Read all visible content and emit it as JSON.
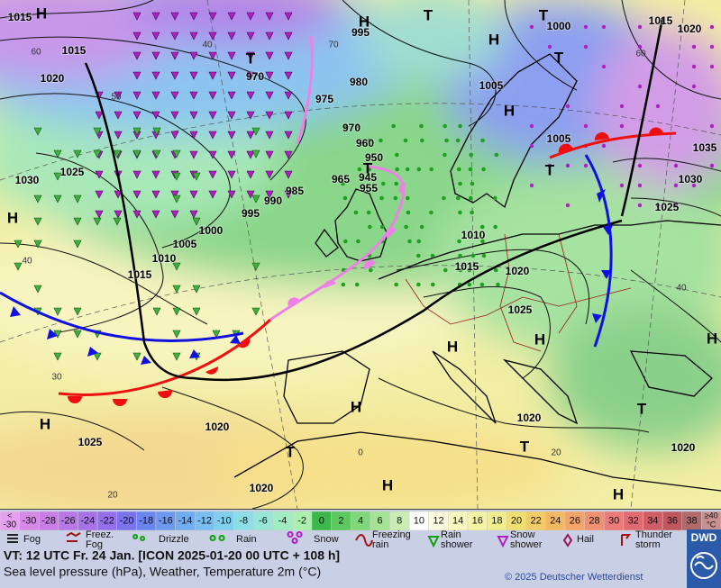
{
  "map": {
    "pressure_labels": [
      "1015",
      "H",
      "1015",
      "1020",
      "1025",
      "1030",
      "H",
      "1015",
      "1010",
      "1005",
      "1000",
      "995",
      "990",
      "985",
      "965",
      "955",
      "945",
      "T",
      "950",
      "960",
      "970",
      "975",
      "980",
      "970",
      "T",
      "995",
      "H",
      "T",
      "H",
      "1005",
      "H",
      "1000",
      "T",
      "T",
      "1015",
      "1020",
      "1005",
      "T",
      "1035",
      "1030",
      "1025",
      "1010",
      "1015",
      "1020",
      "1025",
      "H",
      "H",
      "H",
      "H",
      "T",
      "1020",
      "T",
      "1020",
      "H",
      "1025",
      "1020",
      "T",
      "1020",
      "H",
      "H"
    ],
    "isotherm_labels": [
      "60",
      "50",
      "40",
      "30",
      "20",
      "60",
      "40",
      "20",
      "0",
      "70",
      "40"
    ]
  },
  "legend": {
    "temperature_scale": {
      "below": [
        "<",
        "-30"
      ],
      "steps": [
        -30,
        -28,
        -26,
        -24,
        -22,
        -20,
        -18,
        -16,
        -14,
        -12,
        -10,
        -8,
        -6,
        -4,
        -2,
        0,
        2,
        4,
        6,
        8,
        10,
        12,
        14,
        16,
        18,
        20,
        22,
        24,
        26,
        28,
        30,
        32,
        34,
        36,
        38
      ],
      "above": [
        "≥40",
        "°C"
      ],
      "colors": [
        "#e6a0f0",
        "#d58ae8",
        "#c87ee6",
        "#b877e6",
        "#a672e8",
        "#956fea",
        "#7a74ec",
        "#6a86ee",
        "#6c98f0",
        "#70acf2",
        "#78bef2",
        "#80cfee",
        "#8cdde6",
        "#98e6d8",
        "#a2ecc4",
        "#acf0b0",
        "#3cb84a",
        "#5cc860",
        "#80d67a",
        "#a4e296",
        "#c8eeb4",
        "#ffffff",
        "#fafae0",
        "#f8f8c0",
        "#f4f4a4",
        "#f2ee8c",
        "#f0e070",
        "#f2cc68",
        "#f4b860",
        "#f4a468",
        "#f09070",
        "#ec7a78",
        "#e06a72",
        "#d05c66",
        "#c0565e",
        "#b06a6a",
        "#c89090"
      ]
    },
    "weather": [
      [
        "Fog"
      ],
      [
        "Freez.",
        "Fog"
      ],
      [
        "Drizzle"
      ],
      [
        "Rain"
      ],
      [
        "Snow"
      ],
      [
        "Freezing",
        "rain"
      ],
      [
        "Rain",
        "shower"
      ],
      [
        "Snow",
        "shower"
      ],
      [
        "Hail"
      ],
      [
        "Thunder",
        "storm"
      ]
    ]
  },
  "footer": {
    "valid_time": "VT: 12 UTC Fr.  24 Jan. [ICON 2025-01-20  00 UTC + 108 h]",
    "subtitle": "Sea level pressure (hPa), Weather, Temperature 2m (°C)",
    "copyright": "© 2025 Deutscher Wetterdienst",
    "logo": "DWD"
  }
}
